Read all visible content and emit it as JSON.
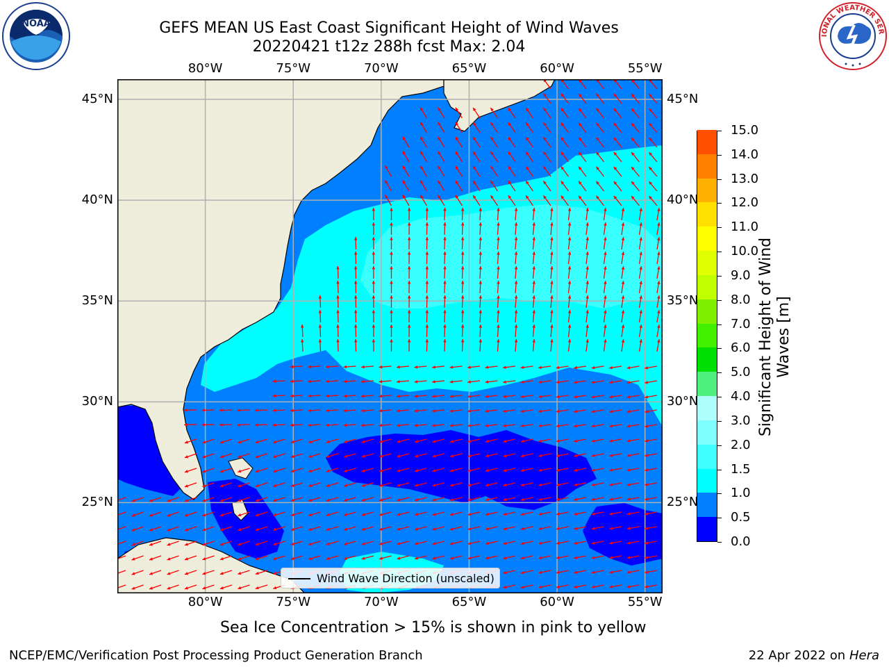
{
  "header": {
    "title_line1": "GEFS MEAN US East Coast Significant Height of Wind Waves",
    "title_line2": "20220421 t12z 288h fcst   Max: 2.04"
  },
  "logos": {
    "left": {
      "icon": "noaa-logo",
      "text": "NOAA"
    },
    "right": {
      "icon": "national-weather-service-logo",
      "text": "NATIONAL WEATHER SERVICE"
    }
  },
  "map": {
    "lon_labels": [
      "80°W",
      "75°W",
      "70°W",
      "65°W",
      "60°W",
      "55°W"
    ],
    "lat_labels": [
      "45°N",
      "40°N",
      "35°N",
      "30°N",
      "25°N"
    ],
    "lon_range": [
      -85,
      -54
    ],
    "lat_range": [
      20.5,
      46
    ],
    "colors": {
      "land": "#efeddc",
      "gridline": "#b0b0b0",
      "arrow": "#ff0000",
      "coast": "#000000"
    }
  },
  "legend": {
    "label": "Wind Wave Direction (unscaled)"
  },
  "colorbar": {
    "label_line1": "Significant Height of Wind",
    "label_line2": "Waves [m]",
    "ticks": [
      "15.0",
      "14.0",
      "13.0",
      "12.0",
      "11.0",
      "10.0",
      "9.0",
      "8.0",
      "7.0",
      "6.0",
      "5.0",
      "4.0",
      "3.0",
      "2.0",
      "1.5",
      "1.0",
      "0.5",
      "0.0"
    ],
    "colors_bottom_to_top": [
      "#0000ff",
      "#0080ff",
      "#00ffff",
      "#40ffff",
      "#80ffff",
      "#b0ffff",
      "#50f080",
      "#00e000",
      "#40f000",
      "#80f000",
      "#c0ff00",
      "#e0ff00",
      "#ffff00",
      "#ffe000",
      "#ffb000",
      "#ff8000",
      "#ff5000",
      "#ff2000",
      "#ff0000"
    ]
  },
  "note": "Sea Ice Concentration > 15% is shown in pink to yellow",
  "footer": {
    "left": "NCEP/EMC/Verification Post Processing Product Generation Branch",
    "right_date": "22 Apr 2022 on ",
    "right_host": "Hera"
  }
}
